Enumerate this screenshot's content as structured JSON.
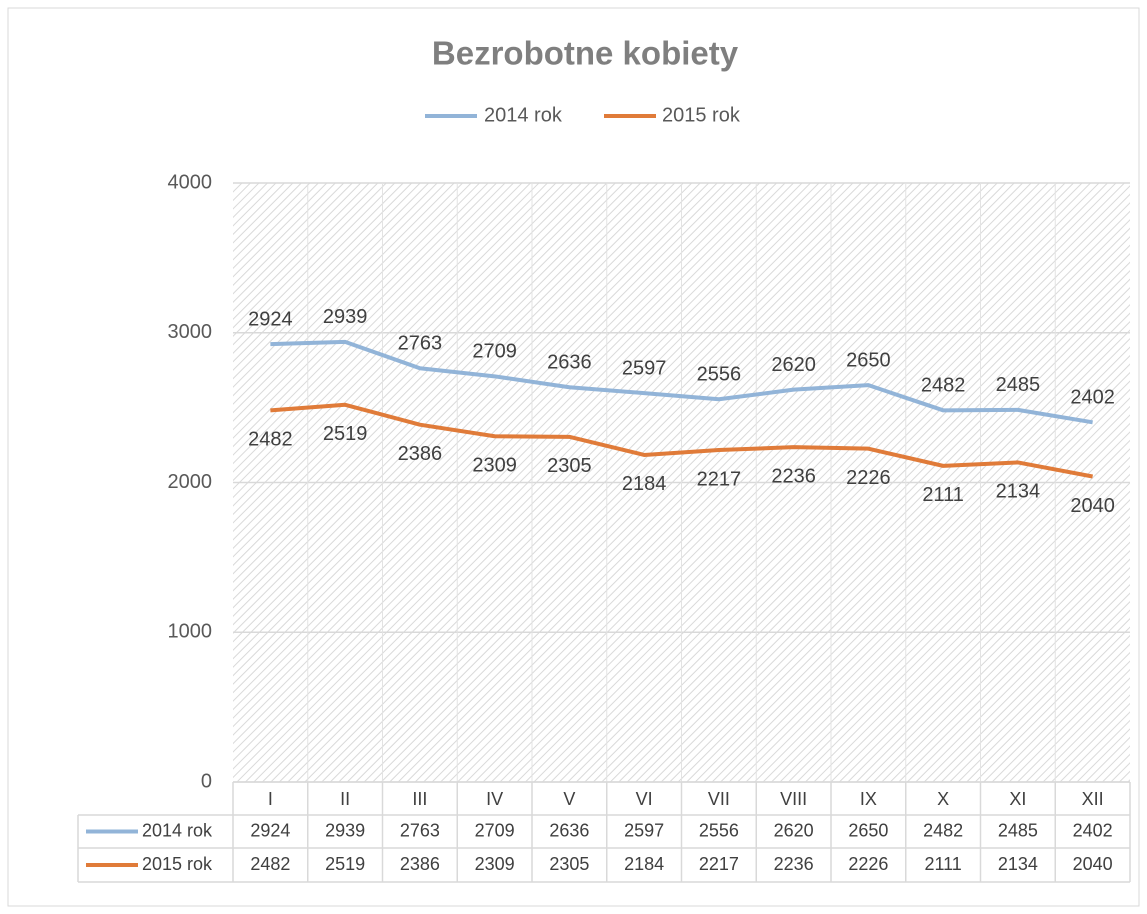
{
  "chart_data": {
    "type": "line",
    "title": "Bezrobotne kobiety",
    "categories": [
      "I",
      "II",
      "III",
      "IV",
      "V",
      "VI",
      "VII",
      "VIII",
      "IX",
      "X",
      "XI",
      "XII"
    ],
    "series": [
      {
        "name": "2014 rok",
        "color": "#92b4d8",
        "values": [
          2924,
          2939,
          2763,
          2709,
          2636,
          2597,
          2556,
          2620,
          2650,
          2482,
          2485,
          2402
        ]
      },
      {
        "name": "2015 rok",
        "color": "#e07b39",
        "values": [
          2482,
          2519,
          2386,
          2309,
          2305,
          2184,
          2217,
          2236,
          2226,
          2111,
          2134,
          2040
        ]
      }
    ],
    "ylim": [
      0,
      4000
    ],
    "yticks": [
      0,
      1000,
      2000,
      3000,
      4000
    ],
    "grid": true,
    "legend": "top"
  }
}
